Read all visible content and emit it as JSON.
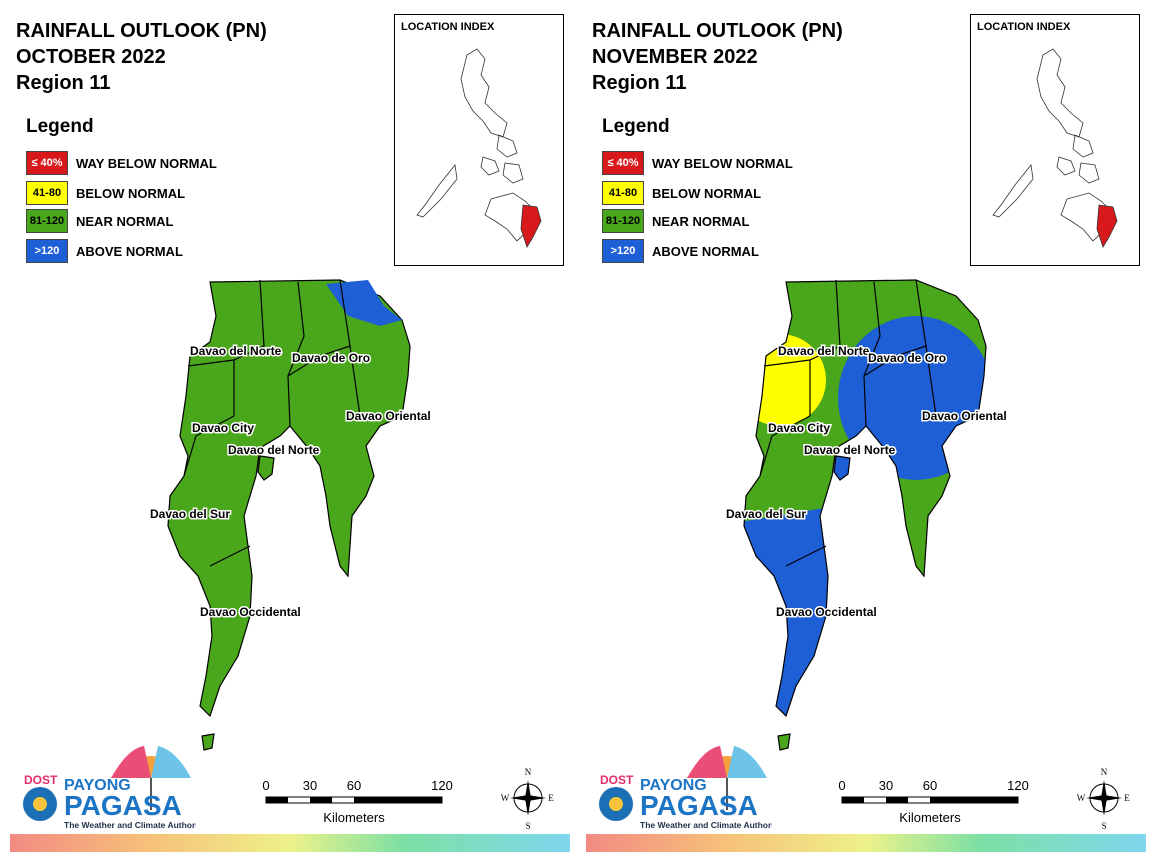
{
  "panels": [
    {
      "title_line1": "RAINFALL OUTLOOK (PN)",
      "title_line2": "OCTOBER 2022",
      "title_line3": "Region 11",
      "legend": {
        "title": "Legend",
        "items": [
          {
            "range": "≤ 40%",
            "label": "WAY BELOW NORMAL",
            "color": "#d7191c"
          },
          {
            "range": "41-80",
            "label": "BELOW NORMAL",
            "color": "#ffff00"
          },
          {
            "range": "81-120",
            "label": "NEAR NORMAL",
            "color": "#4aa61a"
          },
          {
            "range": ">120",
            "label": "ABOVE NORMAL",
            "color": "#1f5fd6"
          }
        ]
      },
      "inset_title": "LOCATION INDEX",
      "regions": {
        "davao_del_norte": "Davao del Norte",
        "davao_de_oro": "Davao de Oro",
        "davao_oriental": "Davao Oriental",
        "davao_city": "Davao City",
        "davao_del_norte_2": "Davao del Norte",
        "davao_del_sur": "Davao del Sur",
        "davao_occidental": "Davao Occidental"
      },
      "scale": {
        "ticks": [
          "0",
          "30",
          "60",
          "120"
        ],
        "unit": "Kilometers"
      },
      "compass": {
        "n": "N",
        "s": "S",
        "e": "E",
        "w": "W"
      },
      "logo": {
        "top": "DOST",
        "payong": "PAYONG",
        "pagasa": "PAGASA",
        "tagline": "The Weather and Climate Authority"
      }
    },
    {
      "title_line1": "RAINFALL OUTLOOK (PN)",
      "title_line2": "NOVEMBER 2022",
      "title_line3": "Region 11",
      "legend": {
        "title": "Legend",
        "items": [
          {
            "range": "≤ 40%",
            "label": "WAY BELOW NORMAL",
            "color": "#d7191c"
          },
          {
            "range": "41-80",
            "label": "BELOW NORMAL",
            "color": "#ffff00"
          },
          {
            "range": "81-120",
            "label": "NEAR NORMAL",
            "color": "#4aa61a"
          },
          {
            "range": ">120",
            "label": "ABOVE NORMAL",
            "color": "#1f5fd6"
          }
        ]
      },
      "inset_title": "LOCATION INDEX",
      "regions": {
        "davao_del_norte": "Davao del Norte",
        "davao_de_oro": "Davao de Oro",
        "davao_oriental": "Davao Oriental",
        "davao_city": "Davao City",
        "davao_del_norte_2": "Davao del Norte",
        "davao_del_sur": "Davao del Sur",
        "davao_occidental": "Davao Occidental"
      },
      "scale": {
        "ticks": [
          "0",
          "30",
          "60",
          "120"
        ],
        "unit": "Kilometers"
      },
      "compass": {
        "n": "N",
        "s": "S",
        "e": "E",
        "w": "W"
      },
      "logo": {
        "top": "DOST",
        "payong": "PAYONG",
        "pagasa": "PAGASA",
        "tagline": "The Weather and Climate Authority"
      }
    }
  ],
  "colors": {
    "near_normal": "#4aa61a",
    "above_normal": "#1f5fd6",
    "below_normal": "#ffff00",
    "way_below": "#d7191c"
  }
}
